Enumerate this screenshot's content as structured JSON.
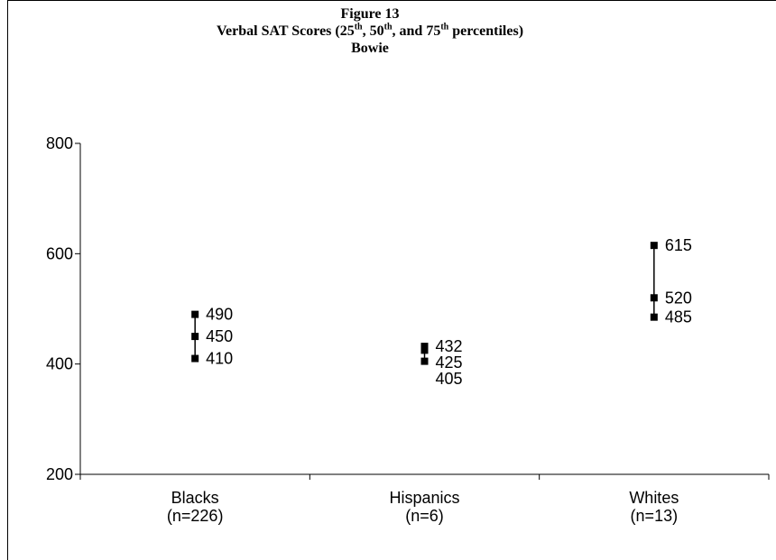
{
  "title": {
    "line1": "Figure 13",
    "line2_prefix": "Verbal SAT Scores (25",
    "sup1": "th",
    "line2_mid1": ", 50",
    "sup2": "th",
    "line2_mid2": ", and 75",
    "sup3": "th",
    "line2_suffix": " percentiles)",
    "line3": "Bowie"
  },
  "chart_data": {
    "type": "scatter",
    "title": "Figure 13 Verbal SAT Scores (25th, 50th, and 75th percentiles) Bowie",
    "xlabel": "",
    "ylabel": "",
    "ylim": [
      200,
      800
    ],
    "yticks": [
      200,
      400,
      600,
      800
    ],
    "ytick_labels": [
      "200",
      "400",
      "600",
      "800"
    ],
    "grid": false,
    "legend": "none",
    "categories": [
      {
        "name": "Blacks",
        "n": "(n=226)",
        "p25": 410,
        "p50": 450,
        "p75": 490,
        "labels": [
          "490",
          "450",
          "410"
        ]
      },
      {
        "name": "Hispanics",
        "n": "(n=6)",
        "p25": 405,
        "p50": 425,
        "p75": 432,
        "labels": [
          "432",
          "425",
          "405"
        ]
      },
      {
        "name": "Whites",
        "n": "(n=13)",
        "p25": 485,
        "p50": 520,
        "p75": 615,
        "labels": [
          "615",
          "520",
          "485"
        ]
      }
    ],
    "colors": {
      "marker": "#000000",
      "line": "#000000",
      "axis": "#000000"
    }
  }
}
